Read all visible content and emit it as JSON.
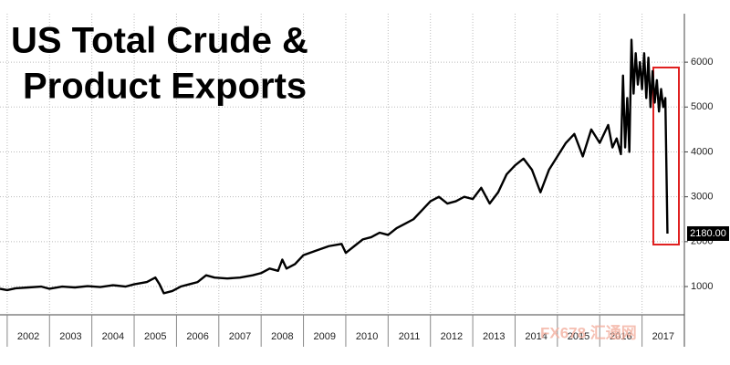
{
  "chart_data": {
    "type": "line",
    "title_lines": [
      "US Total Crude &",
      "Product Exports"
    ],
    "watermark": "FX678 汇通网",
    "x": [
      2001.83,
      2002.0,
      2002.2,
      2002.5,
      2002.8,
      2003.0,
      2003.3,
      2003.6,
      2003.9,
      2004.2,
      2004.5,
      2004.8,
      2005.0,
      2005.3,
      2005.5,
      2005.6,
      2005.7,
      2005.9,
      2006.1,
      2006.3,
      2006.5,
      2006.7,
      2006.9,
      2007.2,
      2007.5,
      2007.8,
      2008.0,
      2008.2,
      2008.4,
      2008.5,
      2008.6,
      2008.8,
      2009.0,
      2009.3,
      2009.6,
      2009.9,
      2010.0,
      2010.2,
      2010.4,
      2010.6,
      2010.8,
      2011.0,
      2011.2,
      2011.4,
      2011.6,
      2011.8,
      2012.0,
      2012.2,
      2012.4,
      2012.6,
      2012.8,
      2013.0,
      2013.2,
      2013.4,
      2013.6,
      2013.8,
      2014.0,
      2014.2,
      2014.4,
      2014.6,
      2014.8,
      2015.0,
      2015.2,
      2015.4,
      2015.6,
      2015.8,
      2016.0,
      2016.2,
      2016.3,
      2016.4,
      2016.5,
      2016.55,
      2016.6,
      2016.65,
      2016.7,
      2016.75,
      2016.8,
      2016.85,
      2016.9,
      2016.95,
      2017.0,
      2017.05,
      2017.1,
      2017.15,
      2017.2,
      2017.25,
      2017.3,
      2017.35,
      2017.4,
      2017.45,
      2017.5,
      2017.55,
      2017.6
    ],
    "series": [
      {
        "color": "#000000",
        "values": [
          950,
          920,
          960,
          980,
          1000,
          950,
          1000,
          980,
          1010,
          990,
          1030,
          1000,
          1050,
          1100,
          1200,
          1050,
          850,
          900,
          1000,
          1050,
          1100,
          1250,
          1200,
          1180,
          1200,
          1250,
          1300,
          1400,
          1350,
          1600,
          1400,
          1500,
          1700,
          1800,
          1900,
          1950,
          1750,
          1900,
          2050,
          2100,
          2200,
          2150,
          2300,
          2400,
          2500,
          2700,
          2900,
          3000,
          2850,
          2900,
          3000,
          2950,
          3200,
          2850,
          3100,
          3500,
          3700,
          3850,
          3600,
          3100,
          3600,
          3900,
          4200,
          4400,
          3900,
          4500,
          4200,
          4600,
          4100,
          4300,
          3950,
          5700,
          4100,
          5200,
          4000,
          6500,
          5300,
          6200,
          5500,
          6000,
          5400,
          6200,
          5200,
          6100,
          5000,
          5800,
          5100,
          5600,
          4900,
          5400,
          5000,
          5200,
          2180
        ],
        "value_labels": [
          null,
          null,
          null,
          null,
          null,
          null,
          null,
          null,
          null,
          null,
          null,
          null,
          null,
          null,
          null,
          null,
          null,
          null,
          null,
          null,
          null,
          null,
          null,
          null,
          null,
          null,
          null,
          null,
          null,
          null,
          null,
          null,
          null,
          null,
          null,
          null,
          null,
          null,
          null,
          null,
          null,
          null,
          null,
          null,
          null,
          null,
          null,
          null,
          null,
          null,
          null,
          null,
          null,
          null,
          null,
          null,
          null,
          null,
          null,
          null,
          null,
          null,
          null,
          null,
          null,
          null,
          null,
          null,
          null,
          null,
          null,
          null,
          null,
          null,
          null,
          null,
          null,
          null,
          null,
          null,
          null,
          null,
          null,
          null,
          null,
          null,
          null,
          null,
          null,
          null,
          null,
          null,
          "2180.00"
        ]
      }
    ],
    "xlim": [
      2001.83,
      2018.0
    ],
    "xticks": [
      2002,
      2003,
      2004,
      2005,
      2006,
      2007,
      2008,
      2009,
      2010,
      2011,
      2012,
      2013,
      2014,
      2015,
      2016,
      2017
    ],
    "ylim": [
      370,
      7080
    ],
    "yticks": [
      1000,
      2000,
      3000,
      4000,
      5000,
      6000
    ],
    "grid": true
  }
}
